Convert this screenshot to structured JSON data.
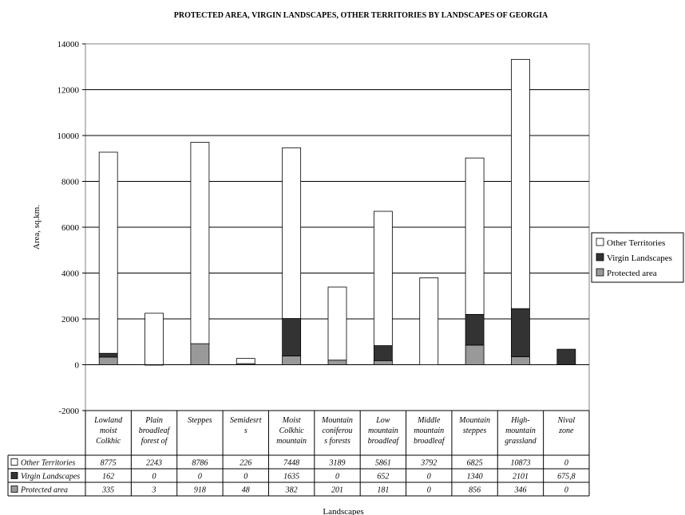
{
  "chart_data": {
    "type": "bar",
    "stacked": true,
    "title": "PROTECTED AREA, VIRGIN LANDSCAPES, OTHER TERRITORIES BY LANDSCAPES OF GEORGIA",
    "xlabel": "Landscapes",
    "ylabel": "Area, sq.km.",
    "ylim": [
      -2000,
      14000
    ],
    "yticks": [
      "-2000",
      "0",
      "2000",
      "4000",
      "6000",
      "8000",
      "10000",
      "12000",
      "14000"
    ],
    "grid": true,
    "legend_position": "right",
    "categories": [
      [
        "Lowland",
        "moist",
        "Colkhic"
      ],
      [
        "Plain",
        "broadleaf",
        "forest of"
      ],
      [
        "Steppes"
      ],
      [
        "Semidesrt",
        "s"
      ],
      [
        "Moist",
        "Colkhic",
        "mountain"
      ],
      [
        "Mountain",
        "coniferou",
        "s forests"
      ],
      [
        "Low",
        "mountain",
        "broadleaf"
      ],
      [
        "Middle",
        "mountain",
        "broadleaf"
      ],
      [
        "Mountain",
        "steppes"
      ],
      [
        "High-",
        "mountain",
        "grassland"
      ],
      [
        "Nival",
        "zone"
      ]
    ],
    "series": [
      {
        "name": "Protected area",
        "color": "#999999",
        "values": [
          335,
          3,
          918,
          48,
          382,
          201,
          181,
          0,
          856,
          346,
          0
        ],
        "labels": [
          "335",
          "3",
          "918",
          "48",
          "382",
          "201",
          "181",
          "0",
          "856",
          "346",
          "0"
        ]
      },
      {
        "name": "Virgin Landscapes",
        "color": "#333333",
        "values": [
          162,
          0,
          0,
          0,
          1635,
          0,
          652,
          0,
          1340,
          2101,
          675.8
        ],
        "labels": [
          "162",
          "0",
          "0",
          "0",
          "1635",
          "0",
          "652",
          "0",
          "1340",
          "2101",
          "675,8"
        ]
      },
      {
        "name": "Other Territories",
        "color": "#ffffff",
        "values": [
          8775,
          2243,
          8786,
          226,
          7448,
          3189,
          5861,
          3792,
          6825,
          10873,
          0
        ],
        "labels": [
          "8775",
          "2243",
          "8786",
          "226",
          "7448",
          "3189",
          "5861",
          "3792",
          "6825",
          "10873",
          "0"
        ]
      }
    ],
    "legend_order": [
      "Other Territories",
      "Virgin Landscapes",
      "Protected area"
    ],
    "table_order": [
      "Other Territories",
      "Virgin Landscapes",
      "Protected area"
    ]
  }
}
